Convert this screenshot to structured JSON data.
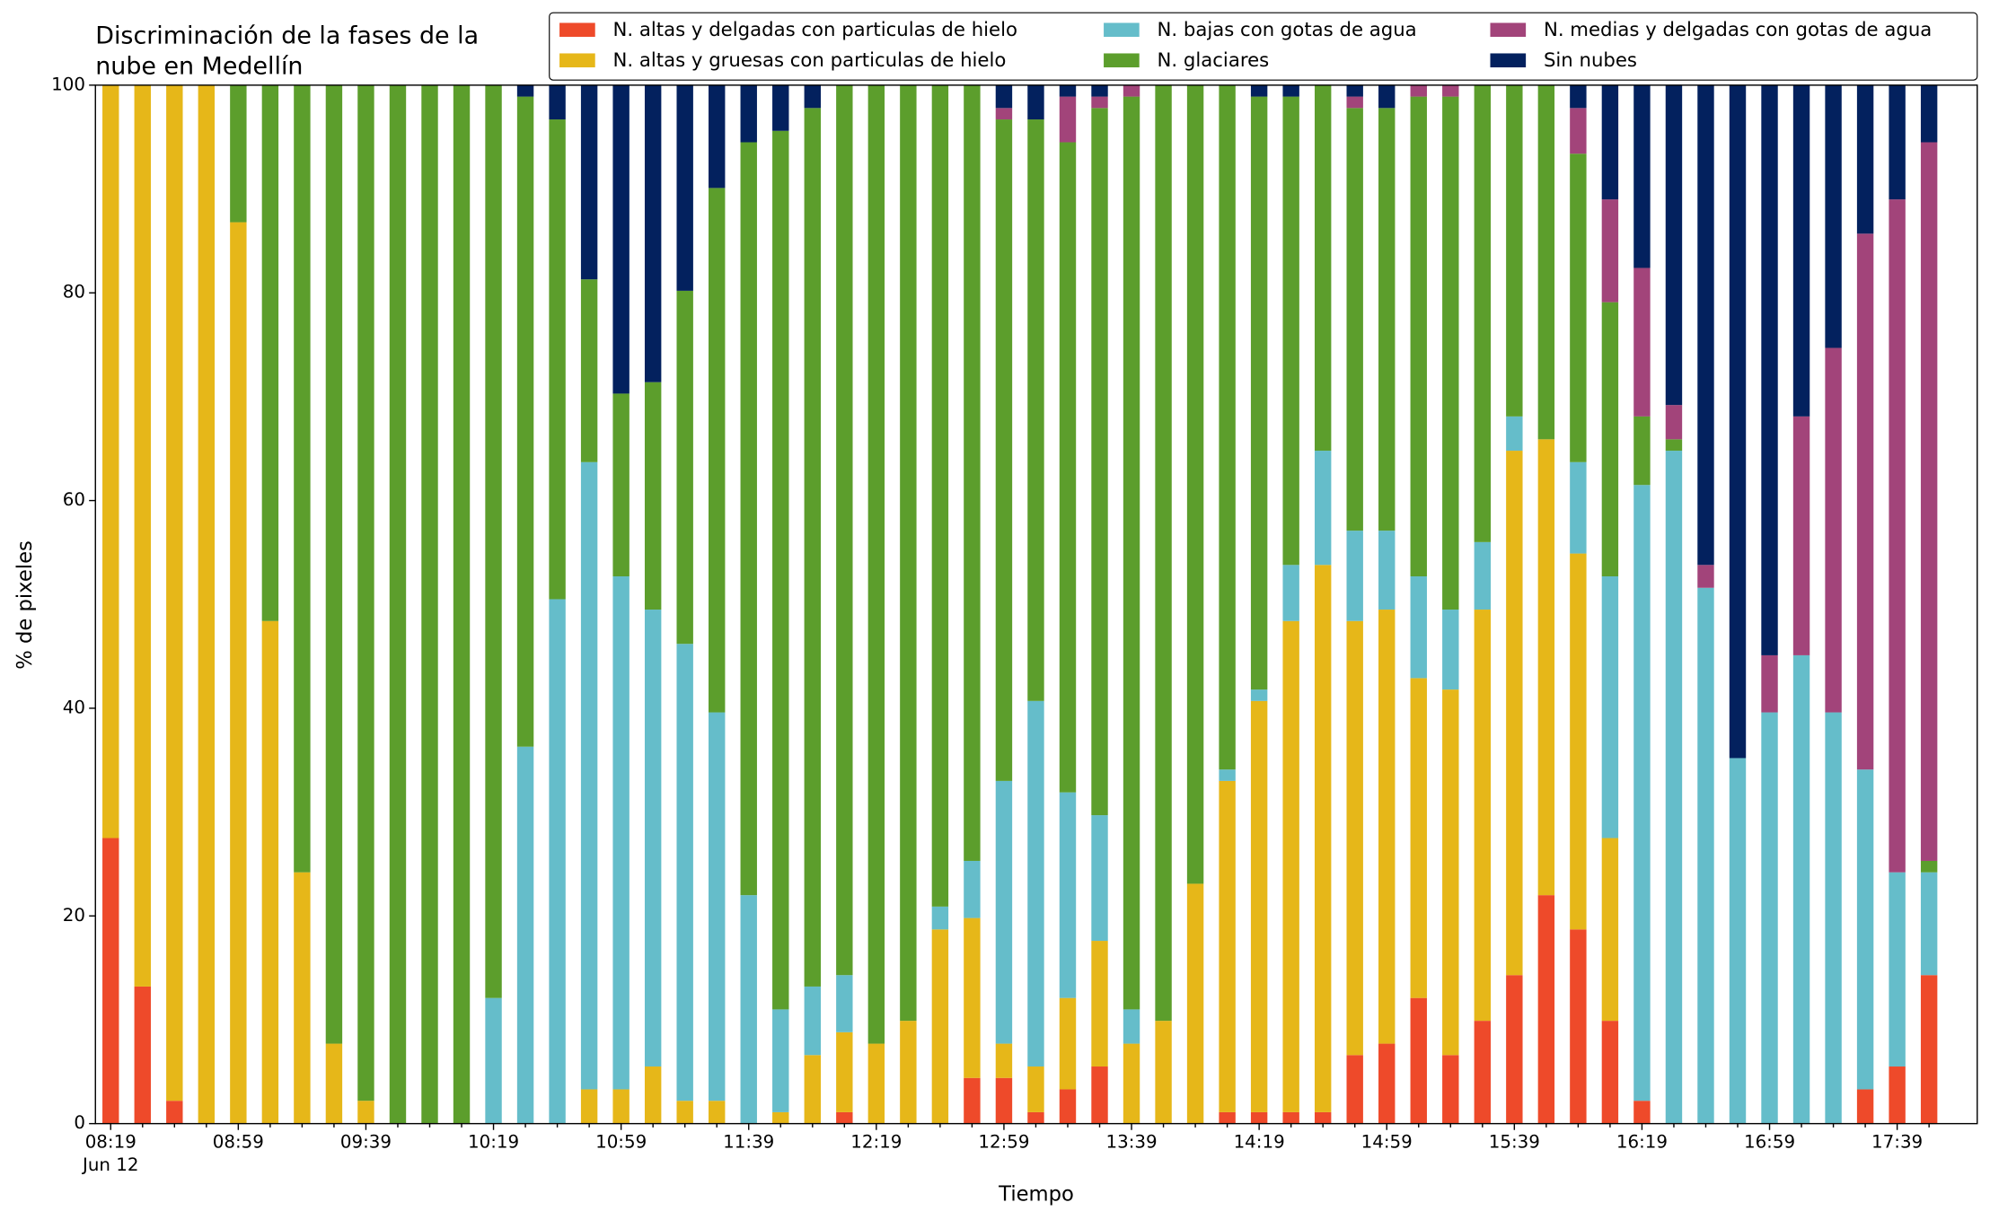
{
  "chart_data": {
    "type": "stacked_bar",
    "title": [
      "Discriminación de la fases de la",
      "nube en Medellín"
    ],
    "xlabel": "Tiempo",
    "ylabel": "% de pixeles",
    "date_label": "Jun 12",
    "categories": [
      "08:19",
      null,
      null,
      null,
      "08:59",
      null,
      null,
      null,
      "09:39",
      null,
      null,
      null,
      "10:19",
      null,
      null,
      null,
      "10:59",
      null,
      null,
      null,
      "11:39",
      null,
      null,
      null,
      "12:19",
      null,
      null,
      null,
      "12:59",
      null,
      null,
      null,
      "13:39",
      null,
      null,
      null,
      "14:19",
      null,
      null,
      null,
      "14:59",
      null,
      null,
      null,
      "15:39",
      null,
      null,
      null,
      "16:19",
      null,
      null,
      null,
      "16:59",
      null,
      null,
      null,
      "17:39",
      null
    ],
    "ylim": [
      0,
      100
    ],
    "yticks": [
      0,
      20,
      40,
      60,
      80,
      100
    ],
    "grid": false,
    "legend": "upper right",
    "series": [
      {
        "name": "N. altas y delgadas con particulas de hielo",
        "color": "#ee4a2a",
        "values": [
          27.5,
          13.2,
          2.2,
          0,
          0,
          0,
          0,
          0,
          0,
          0,
          0,
          0,
          0,
          0,
          0,
          0,
          0,
          0,
          0,
          0,
          0,
          0,
          0,
          1.1,
          0,
          0,
          0,
          4.4,
          4.4,
          1.1,
          3.3,
          5.5,
          0,
          0,
          0,
          1.1,
          1.1,
          1.1,
          1.1,
          6.6,
          7.7,
          12.1,
          6.6,
          9.9,
          14.3,
          22,
          18.7,
          9.9,
          2.2,
          0,
          0,
          0,
          0,
          0,
          0,
          3.3,
          5.5,
          14.3
        ]
      },
      {
        "name": "N. altas y gruesas con particulas de hielo",
        "color": "#e6b719",
        "values": [
          72.5,
          86.8,
          97.8,
          100,
          86.8,
          48.4,
          24.2,
          7.7,
          2.2,
          0,
          0,
          0,
          0,
          0,
          0,
          3.3,
          3.3,
          5.5,
          2.2,
          2.2,
          0,
          1.1,
          6.6,
          7.7,
          7.7,
          9.9,
          18.7,
          15.4,
          3.3,
          4.4,
          8.8,
          12.1,
          7.7,
          9.9,
          23.1,
          31.9,
          39.6,
          47.3,
          52.7,
          41.8,
          41.8,
          30.8,
          35.2,
          39.6,
          50.5,
          43.9,
          36.2,
          17.6,
          0,
          0,
          0,
          0,
          0,
          0,
          0,
          0,
          0,
          0
        ]
      },
      {
        "name": "N. bajas con gotas de agua",
        "color": "#65bdca",
        "values": [
          0,
          0,
          0,
          0,
          0,
          0,
          0,
          0,
          0,
          0,
          0,
          0,
          12.1,
          36.3,
          50.5,
          60.4,
          49.4,
          44,
          44,
          37.4,
          22,
          9.9,
          6.6,
          5.5,
          0,
          0,
          2.2,
          5.5,
          25.3,
          35.2,
          19.8,
          12.1,
          3.3,
          0,
          0,
          1.1,
          1.1,
          5.4,
          11,
          8.7,
          7.6,
          9.8,
          7.7,
          6.5,
          3.3,
          0,
          8.8,
          25.2,
          59.3,
          64.8,
          51.6,
          35.2,
          39.6,
          45.1,
          39.6,
          30.8,
          18.7,
          9.9
        ]
      },
      {
        "name": "N. glaciares",
        "color": "#5c9e2c",
        "values": [
          0,
          0,
          0,
          0,
          13.2,
          51.6,
          75.8,
          92.3,
          97.8,
          100,
          100,
          100,
          87.9,
          62.6,
          46.2,
          17.6,
          17.6,
          21.9,
          34,
          50.5,
          72.5,
          84.6,
          84.6,
          85.7,
          92.3,
          90.1,
          79.1,
          74.7,
          63.7,
          56,
          62.6,
          68.1,
          87.9,
          90.1,
          76.9,
          65.9,
          57.1,
          45.1,
          35.2,
          40.7,
          40.7,
          46.2,
          49.4,
          44,
          31.9,
          34.1,
          29.7,
          26.4,
          6.6,
          1.1,
          0,
          0,
          0,
          0,
          0,
          0,
          0,
          1.1
        ]
      },
      {
        "name": "N. medias y delgadas con gotas de agua",
        "color": "#a2447a",
        "values": [
          0,
          0,
          0,
          0,
          0,
          0,
          0,
          0,
          0,
          0,
          0,
          0,
          0,
          0,
          0,
          0,
          0,
          0,
          0,
          0,
          0,
          0,
          0,
          0,
          0,
          0,
          0,
          0,
          1.1,
          0,
          4.4,
          1.1,
          1.1,
          0,
          0,
          0,
          0,
          0,
          0,
          1.1,
          0,
          1.1,
          1.1,
          0,
          0,
          0,
          4.4,
          9.9,
          14.3,
          3.3,
          2.2,
          0,
          5.5,
          23,
          35.1,
          51.6,
          64.8,
          69.2
        ]
      },
      {
        "name": "Sin nubes",
        "color": "#03215e",
        "values": [
          0,
          0,
          0,
          0,
          0,
          0,
          0,
          0,
          0,
          0,
          0,
          0,
          0,
          1.1,
          3.3,
          18.7,
          29.7,
          28.6,
          19.8,
          9.9,
          5.5,
          4.4,
          2.2,
          0,
          0,
          0,
          0,
          0,
          2.2,
          3.3,
          1.1,
          1.1,
          0,
          0,
          0,
          0,
          1.1,
          1.1,
          0,
          1.1,
          2.2,
          0,
          0,
          0,
          0,
          0,
          2.2,
          11,
          17.6,
          30.8,
          46.2,
          64.8,
          54.9,
          31.9,
          25.3,
          14.3,
          11,
          5.5
        ]
      }
    ]
  }
}
